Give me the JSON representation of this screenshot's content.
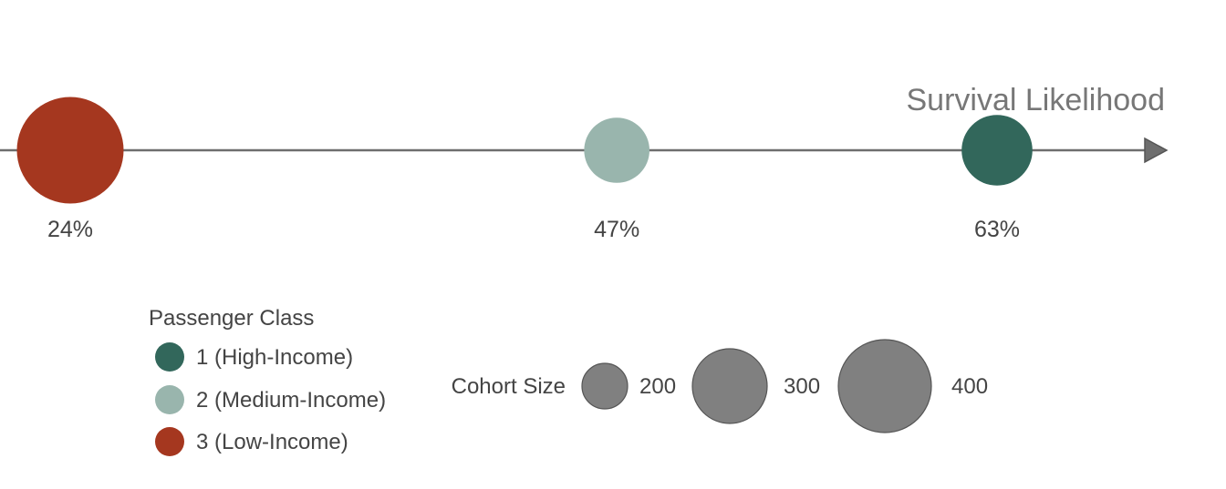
{
  "chart_data": {
    "type": "scatter",
    "x_axis_label": "Survival Likelihood",
    "x_unit": "%",
    "series": [
      {
        "name": "3 (Low-Income)",
        "class": 3,
        "survival": 24,
        "cohort_size": 491,
        "color": "#a5371f"
      },
      {
        "name": "2 (Medium-Income)",
        "class": 2,
        "survival": 47,
        "cohort_size": 184,
        "color": "#99b5ad"
      },
      {
        "name": "1 (High-Income)",
        "class": 1,
        "survival": 63,
        "cohort_size": 216,
        "color": "#32675b"
      }
    ],
    "value_labels": [
      "24%",
      "47%",
      "63%"
    ],
    "xlim": [
      15,
      73
    ],
    "color_legend": {
      "title": "Passenger Class",
      "items": [
        {
          "label": "1 (High-Income)",
          "color": "#32675b"
        },
        {
          "label": "2 (Medium-Income)",
          "color": "#99b5ad"
        },
        {
          "label": "3 (Low-Income)",
          "color": "#a5371f"
        }
      ]
    },
    "size_legend": {
      "title": "Cohort Size",
      "values": [
        200,
        300,
        400
      ],
      "labels": [
        "200",
        "300",
        "400"
      ],
      "color": "#808080"
    }
  }
}
